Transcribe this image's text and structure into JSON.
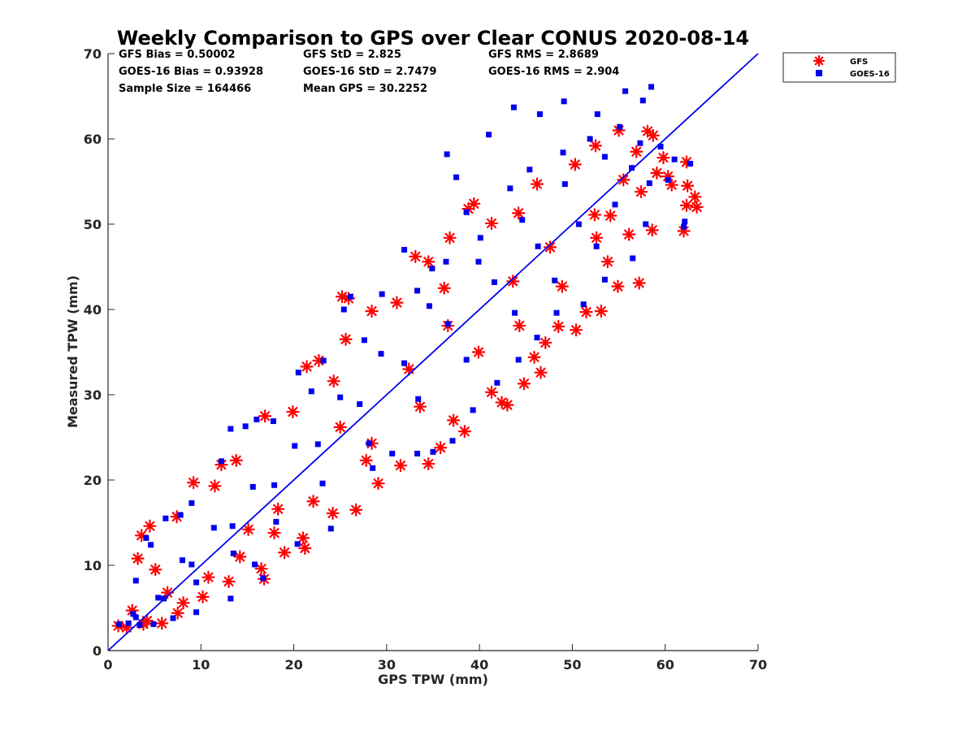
{
  "chart_data": {
    "type": "scatter",
    "title": "Weekly Comparison to GPS over Clear CONUS 2020-08-14",
    "xlabel": "GPS TPW (mm)",
    "ylabel": "Measured TPW (mm)",
    "xlim": [
      0,
      70
    ],
    "ylim": [
      0,
      70
    ],
    "xticks": [
      0,
      10,
      20,
      30,
      40,
      50,
      60,
      70
    ],
    "yticks": [
      0,
      10,
      20,
      30,
      40,
      50,
      60,
      70
    ],
    "grid": false,
    "legend_position": "outside-top-right",
    "reference_line": {
      "x": [
        0,
        70
      ],
      "y": [
        0,
        70
      ],
      "color": "#0000ee"
    },
    "stats": [
      "GFS Bias = 0.50002",
      "GFS StD = 2.825",
      "GFS RMS = 2.8689",
      "GOES-16 Bias = 0.93928",
      "GOES-16 StD = 2.7479",
      "GOES-16 RMS = 2.904",
      "Sample Size = 164466",
      "Mean GPS = 30.2252"
    ],
    "series": [
      {
        "name": "GFS",
        "marker": "asterisk",
        "color": "#ff0000",
        "points": [
          [
            1.1,
            2.9
          ],
          [
            2.6,
            4.7
          ],
          [
            3.2,
            10.8
          ],
          [
            3.6,
            13.5
          ],
          [
            4.5,
            14.6
          ],
          [
            9.2,
            19.7
          ],
          [
            12.2,
            21.8
          ],
          [
            13.8,
            22.3
          ],
          [
            16.9,
            27.5
          ],
          [
            21.4,
            33.3
          ],
          [
            22.7,
            34.0
          ],
          [
            25.6,
            36.5
          ],
          [
            25.2,
            41.5
          ],
          [
            25.9,
            41.3
          ],
          [
            28.4,
            39.8
          ],
          [
            34.5,
            45.6
          ],
          [
            36.8,
            48.4
          ],
          [
            38.8,
            51.8
          ],
          [
            39.4,
            52.4
          ],
          [
            46.2,
            54.7
          ],
          [
            50.3,
            57.0
          ],
          [
            55.0,
            61.0
          ],
          [
            58.1,
            60.9
          ],
          [
            58.7,
            60.4
          ],
          [
            59.1,
            56.0
          ],
          [
            60.7,
            54.6
          ],
          [
            62.3,
            52.2
          ],
          [
            62.0,
            49.2
          ],
          [
            63.4,
            52.0
          ],
          [
            63.2,
            53.2
          ],
          [
            62.4,
            54.5
          ],
          [
            62.3,
            57.3
          ],
          [
            58.6,
            49.3
          ],
          [
            57.2,
            43.1
          ],
          [
            54.9,
            42.7
          ],
          [
            53.1,
            39.8
          ],
          [
            51.5,
            39.7
          ],
          [
            48.5,
            38.0
          ],
          [
            47.1,
            36.1
          ],
          [
            46.6,
            32.6
          ],
          [
            44.8,
            31.3
          ],
          [
            42.4,
            29.1
          ],
          [
            43.0,
            28.8
          ],
          [
            38.4,
            25.7
          ],
          [
            35.8,
            23.8
          ],
          [
            34.5,
            21.9
          ],
          [
            31.5,
            21.7
          ],
          [
            26.7,
            16.5
          ],
          [
            21.2,
            12.0
          ],
          [
            21.0,
            13.2
          ],
          [
            16.5,
            9.6
          ],
          [
            16.8,
            8.4
          ],
          [
            10.2,
            6.3
          ],
          [
            7.5,
            4.4
          ],
          [
            5.8,
            3.2
          ],
          [
            3.8,
            3.1
          ],
          [
            2.0,
            2.7
          ],
          [
            8.1,
            5.6
          ],
          [
            13.0,
            8.1
          ],
          [
            19.0,
            11.5
          ],
          [
            24.2,
            16.1
          ],
          [
            29.1,
            19.6
          ],
          [
            37.2,
            27.0
          ],
          [
            41.3,
            30.3
          ],
          [
            45.9,
            34.4
          ],
          [
            50.4,
            37.6
          ],
          [
            53.8,
            45.6
          ],
          [
            56.1,
            48.8
          ],
          [
            52.6,
            48.4
          ],
          [
            48.9,
            42.7
          ],
          [
            44.3,
            38.1
          ],
          [
            39.9,
            35.0
          ],
          [
            33.6,
            28.6
          ],
          [
            27.8,
            22.3
          ],
          [
            22.1,
            17.5
          ],
          [
            17.9,
            13.8
          ],
          [
            14.2,
            11.0
          ],
          [
            10.8,
            8.6
          ],
          [
            6.4,
            6.8
          ],
          [
            5.1,
            9.5
          ],
          [
            7.4,
            15.7
          ],
          [
            11.5,
            19.3
          ],
          [
            19.9,
            28.0
          ],
          [
            24.3,
            31.6
          ],
          [
            31.1,
            40.8
          ],
          [
            36.2,
            42.5
          ],
          [
            33.1,
            46.2
          ],
          [
            41.3,
            50.1
          ],
          [
            44.2,
            51.3
          ],
          [
            52.5,
            59.2
          ],
          [
            56.9,
            58.5
          ],
          [
            59.8,
            57.8
          ],
          [
            55.5,
            55.2
          ],
          [
            54.1,
            51.0
          ],
          [
            57.4,
            53.8
          ],
          [
            60.3,
            55.6
          ],
          [
            28.4,
            24.3
          ],
          [
            18.3,
            16.6
          ],
          [
            36.6,
            38.1
          ],
          [
            47.6,
            47.3
          ],
          [
            52.4,
            51.1
          ],
          [
            43.6,
            43.3
          ],
          [
            32.4,
            33.0
          ],
          [
            25.0,
            26.2
          ],
          [
            15.1,
            14.2
          ],
          [
            4.2,
            3.5
          ]
        ]
      },
      {
        "name": "GOES-16",
        "marker": "square",
        "color": "#0000ee",
        "points": [
          [
            1.2,
            3.1
          ],
          [
            2.7,
            4.3
          ],
          [
            3.0,
            8.2
          ],
          [
            4.1,
            13.2
          ],
          [
            6.2,
            15.5
          ],
          [
            9.0,
            17.3
          ],
          [
            13.2,
            26.0
          ],
          [
            14.8,
            26.3
          ],
          [
            16.0,
            27.1
          ],
          [
            20.5,
            32.6
          ],
          [
            23.2,
            34.0
          ],
          [
            25.4,
            40.0
          ],
          [
            26.1,
            41.5
          ],
          [
            29.5,
            41.8
          ],
          [
            31.9,
            47.0
          ],
          [
            34.9,
            44.8
          ],
          [
            36.5,
            58.2
          ],
          [
            37.5,
            55.5
          ],
          [
            38.6,
            51.4
          ],
          [
            41.0,
            60.5
          ],
          [
            43.7,
            63.7
          ],
          [
            46.5,
            62.9
          ],
          [
            49.1,
            64.4
          ],
          [
            52.7,
            62.9
          ],
          [
            55.7,
            65.6
          ],
          [
            58.5,
            66.1
          ],
          [
            57.6,
            64.5
          ],
          [
            59.5,
            59.1
          ],
          [
            61.0,
            57.6
          ],
          [
            62.7,
            57.1
          ],
          [
            60.3,
            55.2
          ],
          [
            62.1,
            50.3
          ],
          [
            62.0,
            49.7
          ],
          [
            57.9,
            50.0
          ],
          [
            56.5,
            46.0
          ],
          [
            53.5,
            43.5
          ],
          [
            51.2,
            40.6
          ],
          [
            48.3,
            39.6
          ],
          [
            46.2,
            36.7
          ],
          [
            44.2,
            34.1
          ],
          [
            41.9,
            31.4
          ],
          [
            39.3,
            28.2
          ],
          [
            37.1,
            24.6
          ],
          [
            35.0,
            23.3
          ],
          [
            33.3,
            23.1
          ],
          [
            30.6,
            23.1
          ],
          [
            28.5,
            21.4
          ],
          [
            24.0,
            14.3
          ],
          [
            20.4,
            12.5
          ],
          [
            16.7,
            8.5
          ],
          [
            15.8,
            10.1
          ],
          [
            13.2,
            6.1
          ],
          [
            9.5,
            4.5
          ],
          [
            7.0,
            3.8
          ],
          [
            4.9,
            3.1
          ],
          [
            3.4,
            3.0
          ],
          [
            2.2,
            3.2
          ],
          [
            4.6,
            12.4
          ],
          [
            7.8,
            15.9
          ],
          [
            12.2,
            22.2
          ],
          [
            17.8,
            26.9
          ],
          [
            21.9,
            30.4
          ],
          [
            27.6,
            36.4
          ],
          [
            33.3,
            42.2
          ],
          [
            36.4,
            45.6
          ],
          [
            40.1,
            48.4
          ],
          [
            43.3,
            54.2
          ],
          [
            45.4,
            56.4
          ],
          [
            49.0,
            58.4
          ],
          [
            51.9,
            60.0
          ],
          [
            55.1,
            61.4
          ],
          [
            57.3,
            59.5
          ],
          [
            52.6,
            47.4
          ],
          [
            48.1,
            43.4
          ],
          [
            43.8,
            39.6
          ],
          [
            38.6,
            34.1
          ],
          [
            33.4,
            29.5
          ],
          [
            28.1,
            24.3
          ],
          [
            23.1,
            19.6
          ],
          [
            18.1,
            15.1
          ],
          [
            13.5,
            11.4
          ],
          [
            9.5,
            8.0
          ],
          [
            6.0,
            6.1
          ],
          [
            8.0,
            10.6
          ],
          [
            11.4,
            14.4
          ],
          [
            15.6,
            19.2
          ],
          [
            20.1,
            24.0
          ],
          [
            25.0,
            29.7
          ],
          [
            29.4,
            34.8
          ],
          [
            34.6,
            40.4
          ],
          [
            39.9,
            45.6
          ],
          [
            44.6,
            50.5
          ],
          [
            49.2,
            54.7
          ],
          [
            53.5,
            57.9
          ],
          [
            56.4,
            56.6
          ],
          [
            58.3,
            54.8
          ],
          [
            54.6,
            52.3
          ],
          [
            50.7,
            50.0
          ],
          [
            46.3,
            47.4
          ],
          [
            41.6,
            43.2
          ],
          [
            36.6,
            38.3
          ],
          [
            31.9,
            33.7
          ],
          [
            27.1,
            28.9
          ],
          [
            22.6,
            24.2
          ],
          [
            17.9,
            19.4
          ],
          [
            13.4,
            14.6
          ],
          [
            9.0,
            10.1
          ],
          [
            5.4,
            6.2
          ],
          [
            3.0,
            3.9
          ]
        ]
      }
    ]
  }
}
